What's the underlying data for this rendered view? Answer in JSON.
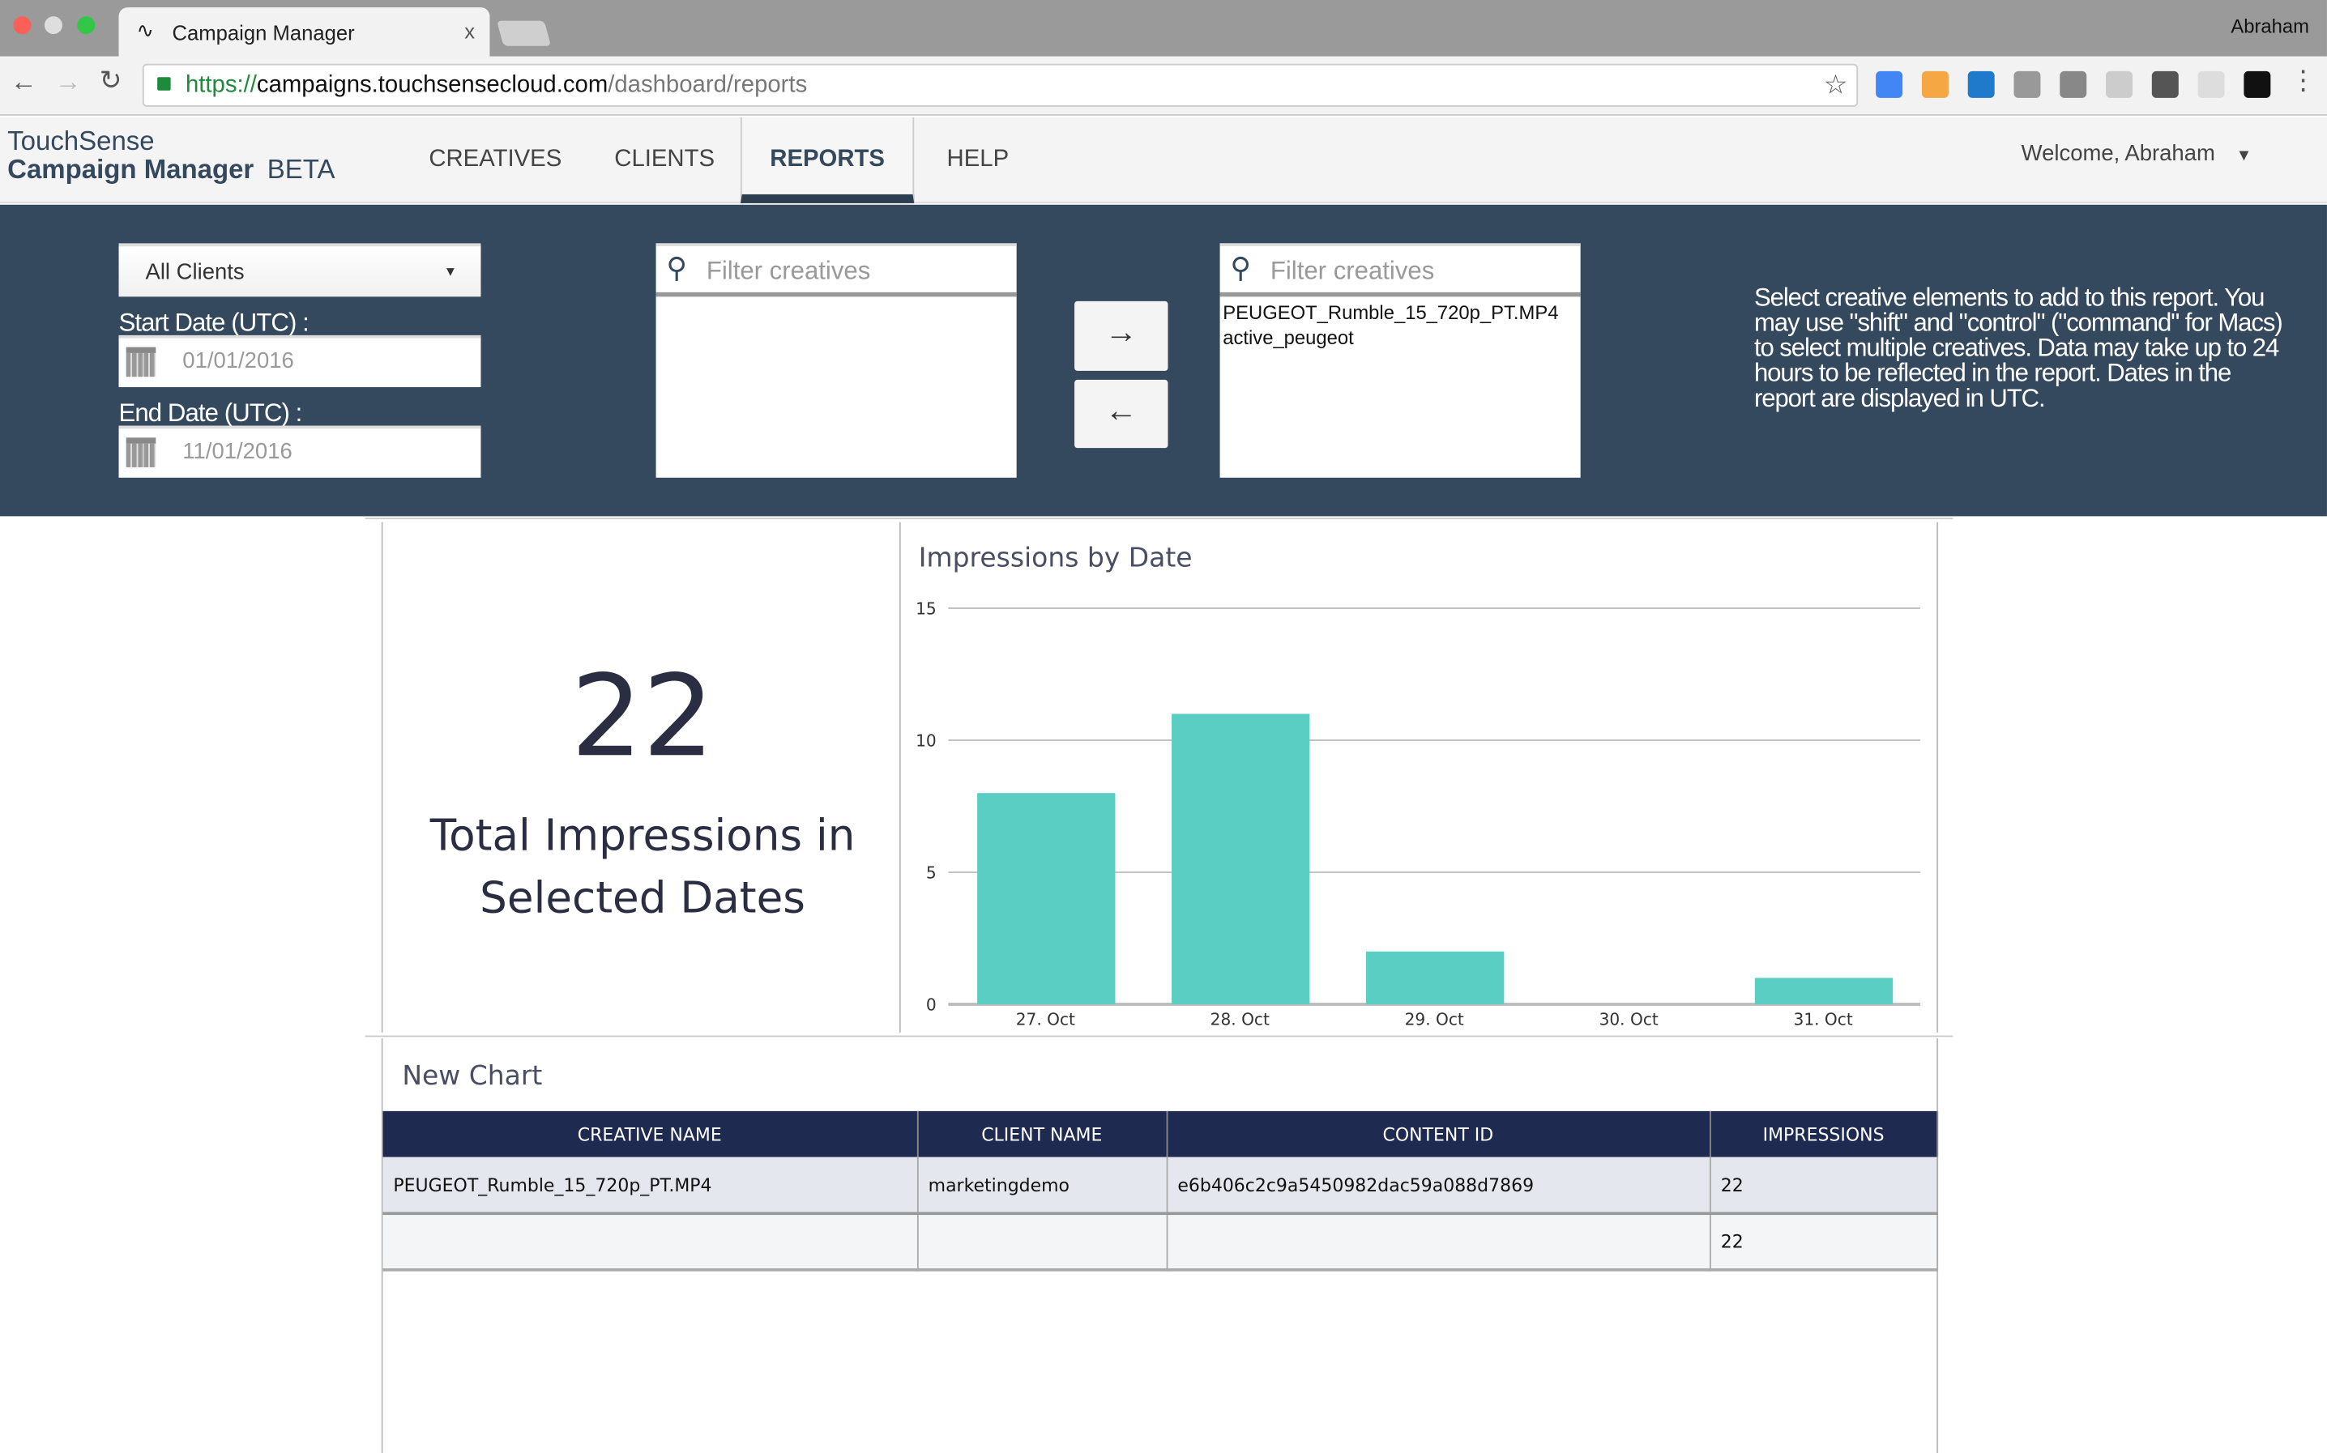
{
  "browser": {
    "tab_title": "Campaign Manager",
    "tab_close": "x",
    "profile": "Abraham",
    "url_scheme": "https://",
    "url_host": "campaigns.touchsensecloud.com",
    "url_path": "/dashboard/reports",
    "extensions": [
      "google-docs-icon",
      "rss-icon",
      "chess-icon",
      "s-icon",
      "shield-icon",
      "react-icon",
      "mail-check-icon",
      "hexagon-icon",
      "grid-icon"
    ]
  },
  "nav": {
    "brand_line1": "TouchSense",
    "brand_line2": "Campaign Manager",
    "beta": "BETA",
    "items": [
      {
        "label": "CREATIVES"
      },
      {
        "label": "CLIENTS"
      },
      {
        "label": "REPORTS",
        "active": true
      },
      {
        "label": "HELP"
      }
    ],
    "welcome": "Welcome, Abraham"
  },
  "filters": {
    "client_select": "All Clients",
    "start_label": "Start Date (UTC) :",
    "start_value": "01/01/2016",
    "end_label": "End Date (UTC) :",
    "end_value": "11/01/2016",
    "left_filter_placeholder": "Filter creatives",
    "right_filter_placeholder": "Filter creatives",
    "selected_creatives": [
      "PEUGEOT_Rumble_15_720p_PT.MP4",
      "active_peugeot"
    ],
    "add_arrow": "→",
    "remove_arrow": "←",
    "help_text": "Select creative elements to add to this report. You may use \"shift\" and \"control\" (\"command\" for Macs) to select multiple creatives. Data may take up to 24 hours to be reflected in the report. Dates in the report are displayed in UTC."
  },
  "summary": {
    "total": "22",
    "label": "Total Impressions in Selected Dates"
  },
  "chart_data": {
    "type": "bar",
    "title": "Impressions by Date",
    "categories": [
      "27. Oct",
      "28. Oct",
      "29. Oct",
      "30. Oct",
      "31. Oct"
    ],
    "values": [
      8,
      11,
      2,
      0,
      1
    ],
    "ylim": [
      0,
      15
    ],
    "yticks": [
      0,
      5,
      10,
      15
    ],
    "grid": true,
    "color": "#5bcec4"
  },
  "table": {
    "title": "New Chart",
    "headers": [
      "CREATIVE NAME",
      "CLIENT NAME",
      "CONTENT ID",
      "IMPRESSIONS"
    ],
    "rows": [
      [
        "PEUGEOT_Rumble_15_720p_PT.MP4",
        "marketingdemo",
        "e6b406c2c9a5450982dac59a088d7869",
        "22"
      ]
    ],
    "total_row": [
      "",
      "",
      "",
      "22"
    ]
  }
}
